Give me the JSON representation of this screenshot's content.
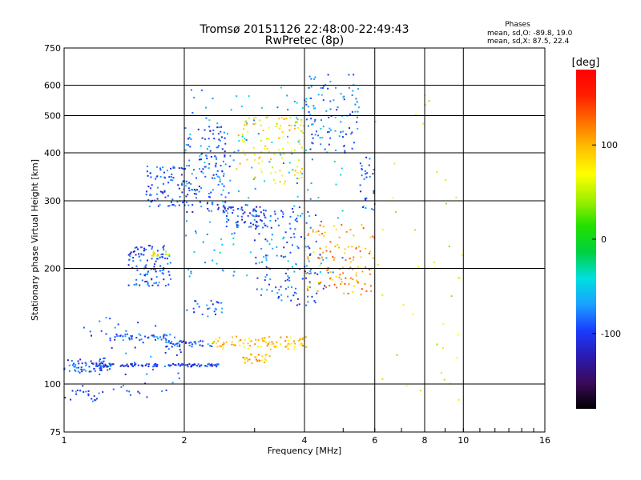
{
  "chart_data": {
    "type": "scatter",
    "title": "Tromsø 20151126 22:48:00-22:49:43",
    "subtitle": "RwPretec (8p)",
    "xlabel": "Frequency [MHz]",
    "ylabel": "Stationary phase Virtual Height [km]",
    "x_scale": "log",
    "y_scale": "log",
    "xlim": [
      1,
      16
    ],
    "ylim": [
      75,
      750
    ],
    "x_ticks": [
      1,
      2,
      4,
      6,
      8,
      10,
      16
    ],
    "x_tick_labels": [
      "1",
      "2",
      "4",
      "6",
      "8",
      "10",
      "16"
    ],
    "x_gridlines": [
      2,
      4,
      6,
      8,
      10
    ],
    "y_ticks": [
      75,
      100,
      200,
      300,
      400,
      500,
      600,
      750
    ],
    "y_tick_labels": [
      "75",
      "100",
      "200",
      "300",
      "400",
      "500",
      "600",
      "750"
    ],
    "y_gridlines": [
      100,
      200,
      300,
      400,
      500,
      600
    ],
    "grid": true,
    "legend": "right colorbar",
    "stats": {
      "title": "Phases",
      "line1": "mean, sd,O: -89.8, 19.0",
      "line2": "mean, sd,X:  87.5, 22.4"
    },
    "colorbar": {
      "label": "[deg]",
      "range": [
        -180,
        180
      ],
      "ticks": [
        100,
        0,
        -100
      ],
      "tick_labels": [
        "100",
        "0",
        "-100"
      ],
      "colormap": [
        "#000000",
        "#3a0a5a",
        "#2a1ab0",
        "#1a3cff",
        "#1aa0ff",
        "#00e0e0",
        "#00d040",
        "#20e000",
        "#a0f000",
        "#ffff00",
        "#ffc000",
        "#ff7000",
        "#ff2000",
        "#ff0000"
      ]
    },
    "clusters": [
      {
        "x": [
          1.0,
          1.3
        ],
        "y": [
          107,
          116
        ],
        "phase": -95,
        "n": 60
      },
      {
        "x": [
          1.2,
          2.45
        ],
        "y": [
          111,
          113
        ],
        "phase": -100,
        "n": 110
      },
      {
        "x": [
          1.0,
          1.25
        ],
        "y": [
          90,
          97
        ],
        "phase": -95,
        "n": 20
      },
      {
        "x": [
          1.3,
          1.85
        ],
        "y": [
          130,
          135
        ],
        "phase": -95,
        "n": 45
      },
      {
        "x": [
          1.8,
          2.4
        ],
        "y": [
          125,
          130
        ],
        "phase": -90,
        "n": 40
      },
      {
        "x": [
          2.35,
          4.1
        ],
        "y": [
          123,
          133
        ],
        "phase": 95,
        "n": 90
      },
      {
        "x": [
          2.8,
          3.3
        ],
        "y": [
          113,
          120
        ],
        "phase": 100,
        "n": 30
      },
      {
        "x": [
          1.45,
          1.85
        ],
        "y": [
          180,
          230
        ],
        "phase": -95,
        "n": 110
      },
      {
        "x": [
          1.65,
          1.85
        ],
        "y": [
          215,
          222
        ],
        "phase": 70,
        "n": 15
      },
      {
        "x": [
          1.6,
          2.0
        ],
        "y": [
          290,
          370
        ],
        "phase": -90,
        "n": 80
      },
      {
        "x": [
          2.0,
          2.6
        ],
        "y": [
          280,
          470
        ],
        "phase": -95,
        "n": 130
      },
      {
        "x": [
          2.5,
          3.2
        ],
        "y": [
          255,
          290
        ],
        "phase": -100,
        "n": 70
      },
      {
        "x": [
          2.0,
          2.5
        ],
        "y": [
          150,
          165
        ],
        "phase": -90,
        "n": 25
      },
      {
        "x": [
          2.7,
          4.0
        ],
        "y": [
          330,
          500
        ],
        "phase": 80,
        "n": 110
      },
      {
        "x": [
          3.0,
          4.5
        ],
        "y": [
          160,
          290
        ],
        "phase": -90,
        "n": 130
      },
      {
        "x": [
          4.0,
          5.5
        ],
        "y": [
          400,
          640
        ],
        "phase": -85,
        "n": 90
      },
      {
        "x": [
          4.0,
          6.0
        ],
        "y": [
          170,
          260
        ],
        "phase": 110,
        "n": 120
      },
      {
        "x": [
          2.0,
          5.0
        ],
        "y": [
          190,
          600
        ],
        "phase": -60,
        "n": 180
      },
      {
        "x": [
          1.1,
          2.0
        ],
        "y": [
          92,
          150
        ],
        "phase": -90,
        "n": 60
      },
      {
        "x": [
          6.0,
          10.0
        ],
        "y": [
          90,
          650
        ],
        "phase": 60,
        "n": 40
      },
      {
        "x": [
          5.5,
          6.0
        ],
        "y": [
          280,
          400
        ],
        "phase": -95,
        "n": 30
      }
    ]
  }
}
